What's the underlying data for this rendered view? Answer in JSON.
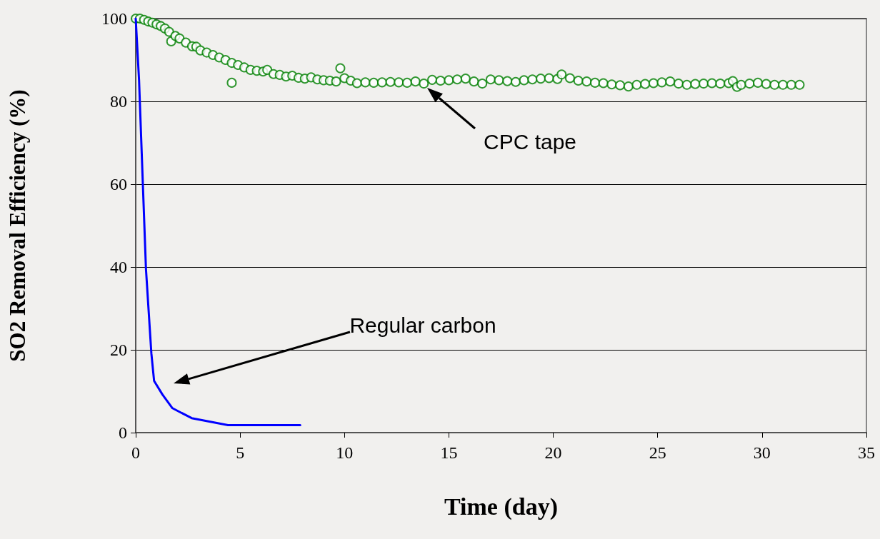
{
  "chart_data": {
    "type": "line",
    "xlabel": "Time (day)",
    "ylabel": "SO2 Removal Efficiency (%)",
    "xlim": [
      0,
      35
    ],
    "xticks": [
      0,
      5,
      10,
      15,
      20,
      25,
      30,
      35
    ],
    "ylim": [
      0,
      100
    ],
    "yticks": [
      0,
      20,
      40,
      60,
      80,
      100
    ],
    "grid": "y",
    "series": [
      {
        "color": "#0000ff",
        "marker": "none",
        "line_style": "solid",
        "x": [
          0,
          0.16,
          0.49,
          0.75,
          0.88,
          1.28,
          1.76,
          2.68,
          4.42,
          7.88
        ],
        "values": [
          100,
          85.1,
          39.6,
          19.1,
          12.5,
          9.2,
          5.9,
          3.5,
          1.8,
          1.8
        ]
      },
      {
        "type": "scatter",
        "color": "#008000",
        "marker": "circle",
        "x": [
          0,
          0.2,
          0.4,
          0.6,
          0.8,
          1,
          1.2,
          1.4,
          1.6,
          1.7,
          1.9,
          2.1,
          2.4,
          2.7,
          2.9,
          3.1,
          3.4,
          3.7,
          4,
          4.3,
          4.6,
          4.6,
          4.9,
          5.2,
          5.5,
          5.8,
          6.1,
          6.3,
          6.6,
          6.9,
          7.2,
          7.5,
          7.8,
          8.1,
          8.4,
          8.7,
          9,
          9.3,
          9.6,
          9.8,
          10,
          10.3,
          10.6,
          11,
          11.4,
          11.8,
          12.2,
          12.6,
          13,
          13.4,
          13.8,
          14.2,
          14.6,
          15,
          15.4,
          15.8,
          16.2,
          16.6,
          17,
          17.4,
          17.8,
          18.2,
          18.6,
          19,
          19.4,
          19.8,
          20.2,
          20.4,
          20.8,
          21.2,
          21.6,
          22,
          22.4,
          22.8,
          23.2,
          23.6,
          24,
          24.4,
          24.8,
          25.2,
          25.6,
          26,
          26.4,
          26.8,
          27.2,
          27.6,
          28,
          28.4,
          28.6,
          28.8,
          29,
          29.4,
          29.8,
          30.2,
          30.6,
          31,
          31.4,
          31.8
        ],
        "values": [
          100,
          100,
          99.7,
          99.3,
          99,
          98.6,
          98.2,
          97.6,
          96.8,
          94.5,
          95.8,
          95.2,
          94.2,
          93.3,
          93.2,
          92.3,
          91.8,
          91.2,
          90.6,
          90,
          84.5,
          89.3,
          88.8,
          88.2,
          87.6,
          87.4,
          87.2,
          87.6,
          86.6,
          86.4,
          86,
          86.2,
          85.7,
          85.5,
          85.8,
          85.3,
          85.1,
          85,
          84.8,
          88,
          85.6,
          85,
          84.4,
          84.6,
          84.5,
          84.6,
          84.7,
          84.6,
          84.5,
          84.8,
          84.3,
          85.2,
          85,
          85.1,
          85.3,
          85.5,
          84.8,
          84.3,
          85.3,
          85.1,
          84.9,
          84.7,
          85.1,
          85.3,
          85.5,
          85.6,
          85.4,
          86.5,
          85.6,
          85,
          84.8,
          84.5,
          84.4,
          84.1,
          83.9,
          83.6,
          84,
          84.2,
          84.4,
          84.6,
          84.8,
          84.3,
          84,
          84.2,
          84.3,
          84.4,
          84.3,
          84.4,
          84.9,
          83.5,
          84,
          84.3,
          84.5,
          84.2,
          84,
          84,
          84,
          84
        ]
      }
    ],
    "annotations": [
      "CPC tape",
      "Regular carbon"
    ]
  }
}
